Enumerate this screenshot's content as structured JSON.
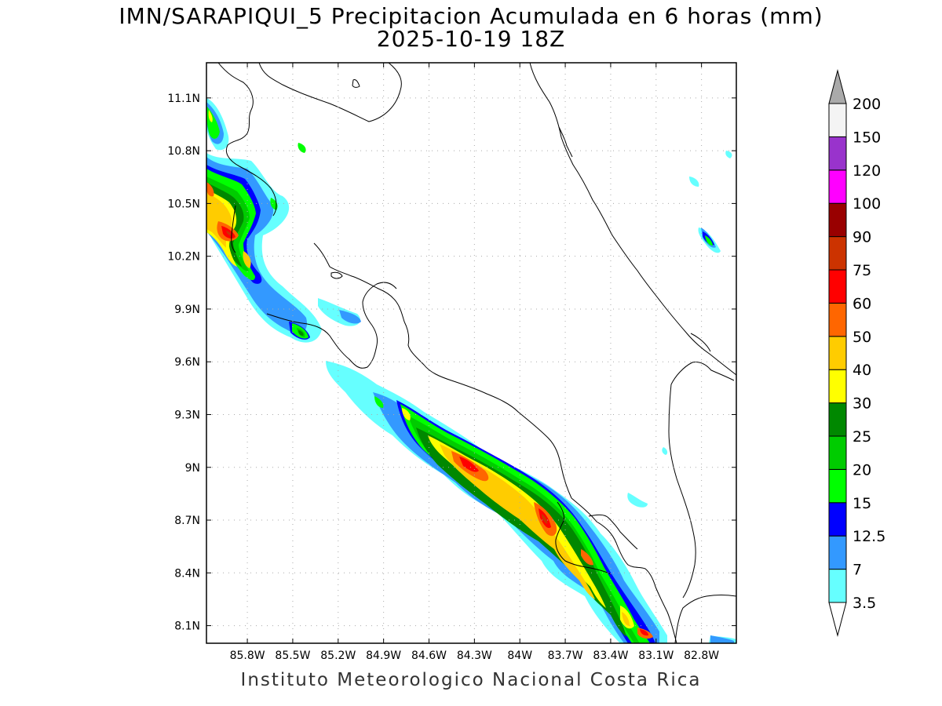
{
  "title": "IMN/SARAPIQUI_5 Precipitacion Acumulada en 6 horas (mm)",
  "subtitle": "2025-10-19 18Z",
  "credit": "Instituto Meteorologico Nacional Costa Rica",
  "map": {
    "lon_range": [
      -86.07,
      -82.57
    ],
    "lat_range": [
      8.0,
      11.3
    ],
    "lon_ticks": [
      "85.8W",
      "85.5W",
      "85.2W",
      "84.9W",
      "84.6W",
      "84.3W",
      "84W",
      "83.7W",
      "83.4W",
      "83.1W",
      "82.8W"
    ],
    "lat_ticks": [
      "11.1N",
      "10.8N",
      "10.5N",
      "10.2N",
      "9.9N",
      "9.6N",
      "9.3N",
      "9N",
      "8.7N",
      "8.4N",
      "8.1N"
    ]
  },
  "colorbar": {
    "levels": [
      "3.5",
      "7",
      "12.5",
      "15",
      "20",
      "25",
      "30",
      "40",
      "50",
      "60",
      "75",
      "90",
      "100",
      "120",
      "150",
      "200"
    ],
    "colors": [
      "#66ffff",
      "#3399ff",
      "#0000ff",
      "#00ff00",
      "#00cc00",
      "#008800",
      "#ffff00",
      "#ffcc00",
      "#ff6600",
      "#ff0000",
      "#cc3300",
      "#990000",
      "#ff00ff",
      "#9933cc",
      "#f4f4f4",
      "#aaaaaa"
    ]
  }
}
